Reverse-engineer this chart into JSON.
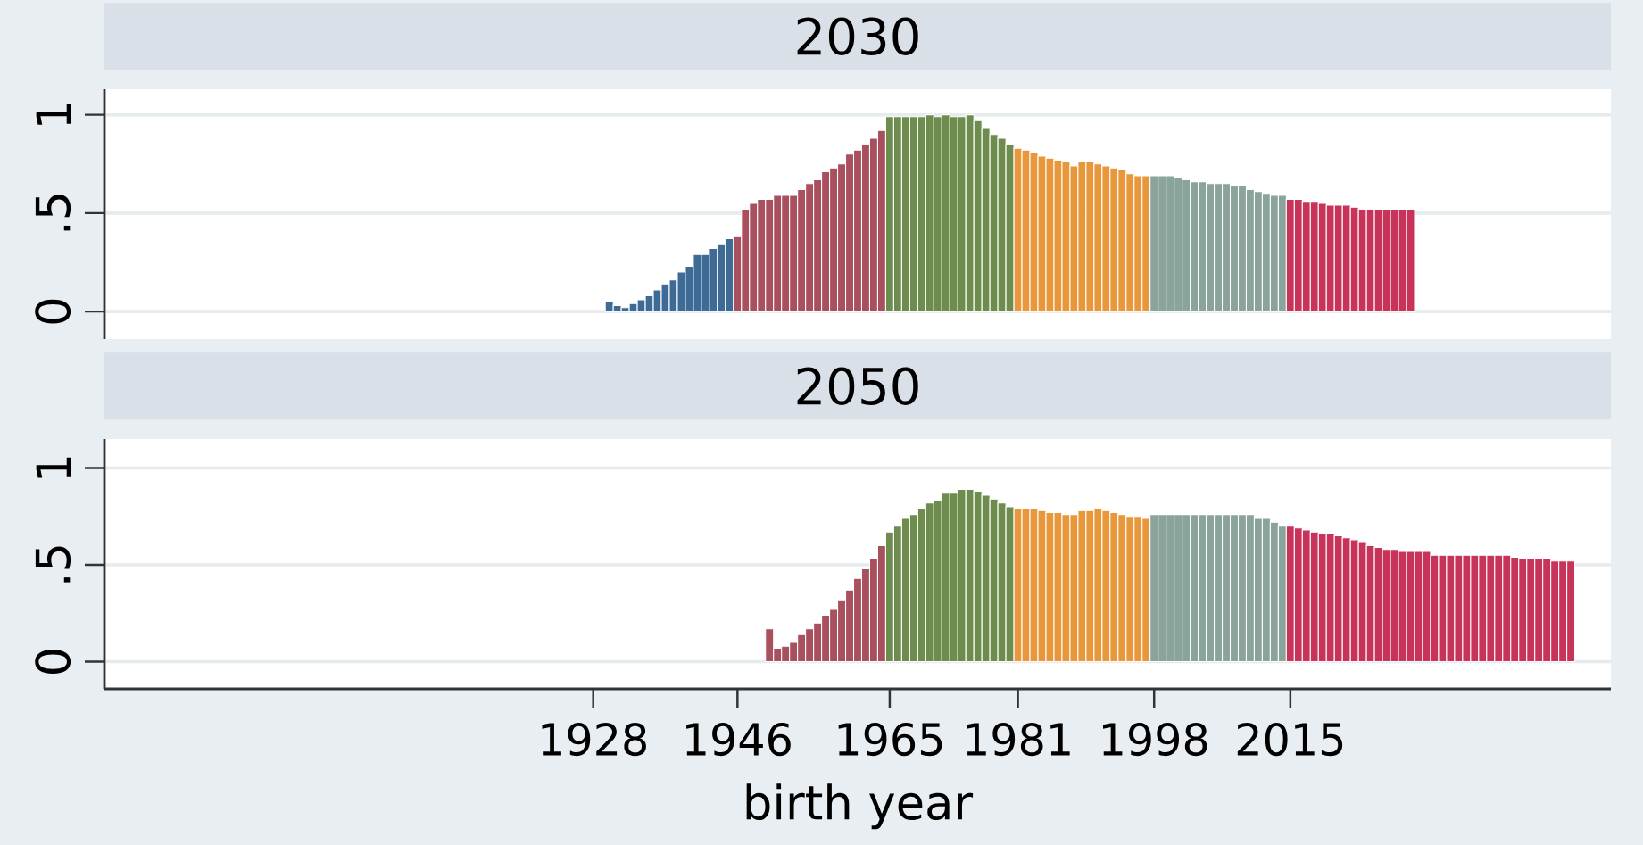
{
  "chart_data": [
    {
      "type": "bar",
      "title": "2030",
      "xlim": [
        1867,
        2055
      ],
      "ylim": [
        -0.14,
        1.13
      ],
      "yticks": [
        0,
        {
          "value": 0.5,
          "label": ".5"
        },
        1
      ],
      "grid": "y",
      "tick_labels": "y",
      "series": [
        {
          "color": "#3e6a96",
          "x": [
            1930,
            1931,
            1932,
            1933,
            1934,
            1935,
            1936,
            1937,
            1938,
            1939,
            1940,
            1941,
            1942,
            1943,
            1944,
            1945
          ],
          "values": [
            0.05,
            0.03,
            0.02,
            0.04,
            0.06,
            0.08,
            0.11,
            0.14,
            0.16,
            0.2,
            0.23,
            0.29,
            0.29,
            0.32,
            0.34,
            0.37
          ]
        },
        {
          "color": "#a9505f",
          "x": [
            1946,
            1947,
            1948,
            1949,
            1950,
            1951,
            1952,
            1953,
            1954,
            1955,
            1956,
            1957,
            1958,
            1959,
            1960,
            1961,
            1962,
            1963,
            1964
          ],
          "values": [
            0.38,
            0.52,
            0.55,
            0.57,
            0.57,
            0.59,
            0.59,
            0.59,
            0.62,
            0.65,
            0.67,
            0.71,
            0.73,
            0.75,
            0.8,
            0.82,
            0.85,
            0.88,
            0.92
          ]
        },
        {
          "color": "#6f8c4f",
          "x": [
            1965,
            1966,
            1967,
            1968,
            1969,
            1970,
            1971,
            1972,
            1973,
            1974,
            1975,
            1976,
            1977,
            1978,
            1979,
            1980
          ],
          "values": [
            0.99,
            0.99,
            0.99,
            0.99,
            0.99,
            1.0,
            0.99,
            1.0,
            0.99,
            0.99,
            1.0,
            0.97,
            0.93,
            0.9,
            0.88,
            0.85
          ]
        },
        {
          "color": "#e8973a",
          "x": [
            1981,
            1982,
            1983,
            1984,
            1985,
            1986,
            1987,
            1988,
            1989,
            1990,
            1991,
            1992,
            1993,
            1994,
            1995,
            1996,
            1997
          ],
          "values": [
            0.83,
            0.82,
            0.81,
            0.79,
            0.78,
            0.77,
            0.76,
            0.74,
            0.76,
            0.76,
            0.75,
            0.74,
            0.73,
            0.72,
            0.7,
            0.69,
            0.69
          ]
        },
        {
          "color": "#8aa39b",
          "x": [
            1998,
            1999,
            2000,
            2001,
            2002,
            2003,
            2004,
            2005,
            2006,
            2007,
            2008,
            2009,
            2010,
            2011,
            2012,
            2013,
            2014
          ],
          "values": [
            0.69,
            0.69,
            0.69,
            0.68,
            0.67,
            0.66,
            0.66,
            0.65,
            0.65,
            0.65,
            0.64,
            0.64,
            0.62,
            0.61,
            0.6,
            0.59,
            0.59
          ]
        },
        {
          "color": "#c8335a",
          "x": [
            2015,
            2016,
            2017,
            2018,
            2019,
            2020,
            2021,
            2022,
            2023,
            2024,
            2025,
            2026,
            2027,
            2028,
            2029,
            2030
          ],
          "values": [
            0.57,
            0.57,
            0.56,
            0.56,
            0.55,
            0.54,
            0.54,
            0.54,
            0.53,
            0.52,
            0.52,
            0.52,
            0.52,
            0.52,
            0.52,
            0.52
          ]
        }
      ]
    },
    {
      "type": "bar",
      "title": "2050",
      "xlabel": "birth year",
      "xlim": [
        1867,
        2055
      ],
      "ylim": [
        -0.14,
        1.15
      ],
      "xticks": [
        1928,
        1946,
        1965,
        1981,
        1998,
        2015
      ],
      "yticks": [
        0,
        {
          "value": 0.5,
          "label": ".5"
        },
        1
      ],
      "grid": "y",
      "series": [
        {
          "color": "#a9505f",
          "x": [
            1950,
            1951,
            1952,
            1953,
            1954,
            1955,
            1956,
            1957,
            1958,
            1959,
            1960,
            1961,
            1962,
            1963,
            1964
          ],
          "values": [
            0.17,
            0.07,
            0.08,
            0.1,
            0.14,
            0.17,
            0.2,
            0.24,
            0.27,
            0.32,
            0.37,
            0.43,
            0.48,
            0.53,
            0.6
          ]
        },
        {
          "color": "#6f8c4f",
          "x": [
            1965,
            1966,
            1967,
            1968,
            1969,
            1970,
            1971,
            1972,
            1973,
            1974,
            1975,
            1976,
            1977,
            1978,
            1979,
            1980
          ],
          "values": [
            0.67,
            0.7,
            0.74,
            0.76,
            0.79,
            0.82,
            0.83,
            0.87,
            0.87,
            0.89,
            0.89,
            0.88,
            0.86,
            0.84,
            0.82,
            0.8
          ]
        },
        {
          "color": "#e8973a",
          "x": [
            1981,
            1982,
            1983,
            1984,
            1985,
            1986,
            1987,
            1988,
            1989,
            1990,
            1991,
            1992,
            1993,
            1994,
            1995,
            1996,
            1997
          ],
          "values": [
            0.79,
            0.79,
            0.79,
            0.78,
            0.77,
            0.77,
            0.76,
            0.76,
            0.78,
            0.78,
            0.79,
            0.78,
            0.77,
            0.76,
            0.75,
            0.75,
            0.74
          ]
        },
        {
          "color": "#8aa39b",
          "x": [
            1998,
            1999,
            2000,
            2001,
            2002,
            2003,
            2004,
            2005,
            2006,
            2007,
            2008,
            2009,
            2010,
            2011,
            2012,
            2013,
            2014
          ],
          "values": [
            0.76,
            0.76,
            0.76,
            0.76,
            0.76,
            0.76,
            0.76,
            0.76,
            0.76,
            0.76,
            0.76,
            0.76,
            0.76,
            0.74,
            0.74,
            0.72,
            0.7
          ]
        },
        {
          "color": "#c8335a",
          "x": [
            2015,
            2016,
            2017,
            2018,
            2019,
            2020,
            2021,
            2022,
            2023,
            2024,
            2025,
            2026,
            2027,
            2028,
            2029,
            2030,
            2031,
            2032,
            2033,
            2034,
            2035,
            2036,
            2037,
            2038,
            2039,
            2040,
            2041,
            2042,
            2043,
            2044,
            2045,
            2046,
            2047,
            2048,
            2049,
            2050
          ],
          "values": [
            0.7,
            0.69,
            0.68,
            0.67,
            0.66,
            0.66,
            0.65,
            0.64,
            0.63,
            0.62,
            0.6,
            0.59,
            0.58,
            0.58,
            0.57,
            0.57,
            0.57,
            0.57,
            0.55,
            0.55,
            0.55,
            0.55,
            0.55,
            0.55,
            0.55,
            0.55,
            0.55,
            0.55,
            0.54,
            0.53,
            0.53,
            0.53,
            0.53,
            0.52,
            0.52,
            0.52
          ]
        }
      ]
    }
  ]
}
